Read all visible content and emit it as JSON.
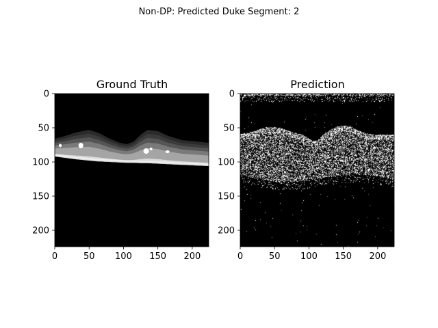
{
  "figure": {
    "suptitle": "Non-DP: Predicted Duke Segment: 2"
  },
  "chart_data": [
    {
      "type": "heatmap",
      "title": "Ground Truth",
      "colormap": "gray",
      "background_color": "#000000",
      "xlim": [
        0,
        224
      ],
      "ylim": [
        224,
        0
      ],
      "x_ticks": [
        0,
        50,
        100,
        150,
        200
      ],
      "y_ticks": [
        0,
        50,
        100,
        150,
        200
      ],
      "x_tick_labels": [
        "0",
        "50",
        "100",
        "150",
        "200"
      ],
      "y_tick_labels": [
        "0",
        "50",
        "100",
        "150",
        "200"
      ],
      "layer_gray_levels": [
        "#2a2a2a",
        "#3b3b3b",
        "#555555",
        "#7a7a7a",
        "#a5a5a5",
        "#d9d9d9"
      ],
      "lesion_color": "#ffffff"
    },
    {
      "type": "heatmap",
      "title": "Prediction",
      "colormap": "gray",
      "background_color": "#000000",
      "xlim": [
        0,
        224
      ],
      "ylim": [
        224,
        0
      ],
      "x_ticks": [
        0,
        50,
        100,
        150,
        200
      ],
      "y_ticks": [
        0,
        50,
        100,
        150,
        200
      ],
      "x_tick_labels": [
        "0",
        "50",
        "100",
        "150",
        "200"
      ],
      "y_tick_labels": [
        "0",
        "50",
        "100",
        "150",
        "200"
      ],
      "noise_colors": [
        "#ffffff",
        "#9a9a9a",
        "#6e6e6e"
      ]
    }
  ]
}
